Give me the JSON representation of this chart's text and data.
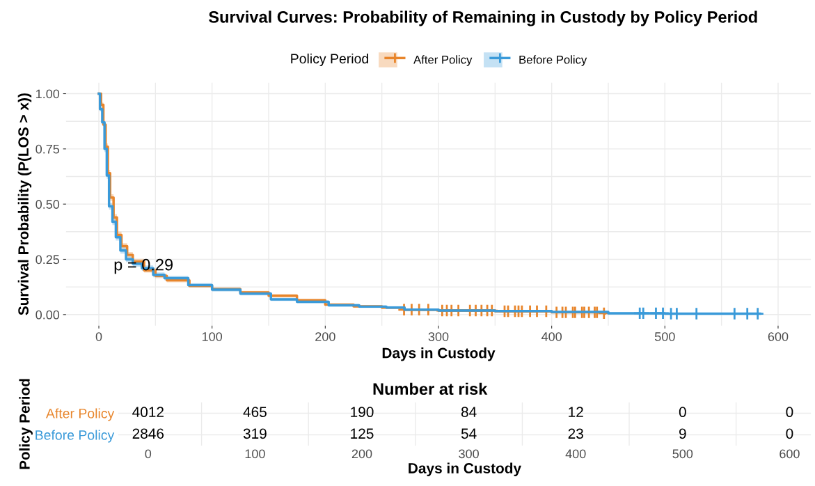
{
  "chart_data": [
    {
      "type": "step",
      "title": "Survival Curves: Probability of Remaining in Custody by Policy Period",
      "xlabel": "Days in Custody",
      "ylabel": "Survival Probability (P(LOS > x))",
      "legend_title": "Policy Period",
      "legend": "top",
      "grid": true,
      "line_style": "solid",
      "xlim": [
        -29,
        629
      ],
      "ylim": [
        -0.05,
        1.05
      ],
      "xticks": [
        0,
        100,
        200,
        300,
        400,
        500,
        600
      ],
      "yticks": [
        {
          "value": 0,
          "label": "0.00"
        },
        {
          "value": 0.25,
          "label": "0.25"
        },
        {
          "value": 0.5,
          "label": "0.50"
        },
        {
          "value": 0.75,
          "label": "0.75"
        },
        {
          "value": 1,
          "label": "1.00"
        }
      ],
      "annotations": [
        "p = 0.29"
      ],
      "series": [
        {
          "name": "After Policy",
          "type": "step",
          "color": "#e8852b",
          "x": [
            0,
            2,
            4,
            6,
            8,
            10,
            13,
            16,
            20,
            25,
            30,
            40,
            50,
            60,
            80,
            100,
            125,
            150,
            175,
            200,
            225,
            250,
            270,
            300,
            350,
            400,
            447
          ],
          "values": [
            1.0,
            0.95,
            0.86,
            0.76,
            0.64,
            0.53,
            0.44,
            0.36,
            0.31,
            0.27,
            0.24,
            0.2,
            0.175,
            0.155,
            0.13,
            0.115,
            0.1,
            0.085,
            0.065,
            0.045,
            0.037,
            0.032,
            0.022,
            0.018,
            0.015,
            0.01,
            0.006
          ],
          "lower": [
            1.0,
            0.94,
            0.85,
            0.745,
            0.625,
            0.515,
            0.425,
            0.345,
            0.297,
            0.257,
            0.228,
            0.19,
            0.165,
            0.146,
            0.122,
            0.107,
            0.093,
            0.078,
            0.059,
            0.04,
            0.032,
            0.027,
            0.018,
            0.014,
            0.011,
            0.006,
            0.002
          ],
          "upper": [
            1.0,
            0.96,
            0.87,
            0.775,
            0.655,
            0.545,
            0.455,
            0.375,
            0.323,
            0.283,
            0.252,
            0.21,
            0.185,
            0.164,
            0.138,
            0.123,
            0.107,
            0.092,
            0.071,
            0.05,
            0.042,
            0.037,
            0.026,
            0.022,
            0.019,
            0.014,
            0.01
          ]
        },
        {
          "name": "Before Policy",
          "type": "step",
          "color": "#3a9ad9",
          "x": [
            0,
            1,
            3,
            5,
            7,
            9,
            12,
            15,
            19,
            24,
            30,
            38,
            48,
            58,
            79,
            100,
            125,
            152,
            175,
            203,
            230,
            254,
            270,
            300,
            350,
            400,
            450,
            500,
            584
          ],
          "values": [
            1.0,
            0.93,
            0.87,
            0.75,
            0.63,
            0.49,
            0.42,
            0.35,
            0.29,
            0.25,
            0.23,
            0.21,
            0.18,
            0.165,
            0.133,
            0.113,
            0.095,
            0.069,
            0.058,
            0.042,
            0.036,
            0.032,
            0.022,
            0.018,
            0.016,
            0.012,
            0.006,
            0.004,
            0.004
          ],
          "lower": [
            1.0,
            0.92,
            0.86,
            0.735,
            0.615,
            0.475,
            0.405,
            0.335,
            0.276,
            0.237,
            0.217,
            0.198,
            0.169,
            0.155,
            0.124,
            0.104,
            0.087,
            0.062,
            0.051,
            0.036,
            0.03,
            0.026,
            0.017,
            0.013,
            0.011,
            0.007,
            0.002,
            0.0,
            0.0
          ],
          "upper": [
            1.0,
            0.94,
            0.88,
            0.765,
            0.645,
            0.505,
            0.435,
            0.365,
            0.304,
            0.263,
            0.243,
            0.222,
            0.191,
            0.175,
            0.142,
            0.122,
            0.103,
            0.076,
            0.065,
            0.048,
            0.042,
            0.038,
            0.027,
            0.023,
            0.021,
            0.017,
            0.01,
            0.008,
            0.008
          ]
        },
        {
          "type": "scatter",
          "color": "#e8852b",
          "x": [
            269.6,
            276.3,
            282.9,
            291,
            303.3,
            307.4,
            311.5,
            317.6,
            327.8,
            332.9,
            338,
            343.1,
            347.2,
            358.4,
            361.5,
            367.6,
            370.7,
            373.7,
            380.9,
            387,
            395.2,
            404.3,
            409.5,
            412.5,
            418.7,
            420.7,
            426.8,
            428.8,
            432.9,
            438,
            440,
            446.2
          ],
          "values": [
            0.022,
            0.022,
            0.022,
            0.022,
            0.018,
            0.018,
            0.018,
            0.018,
            0.018,
            0.018,
            0.018,
            0.018,
            0.018,
            0.015,
            0.015,
            0.015,
            0.015,
            0.015,
            0.015,
            0.015,
            0.015,
            0.01,
            0.01,
            0.01,
            0.01,
            0.01,
            0.01,
            0.01,
            0.01,
            0.01,
            0.01,
            0.006
          ]
        },
        {
          "type": "scatter",
          "color": "#3a9ad9",
          "x": [
            477.8,
            480.9,
            492.1,
            498.3,
            505.4,
            510.5,
            527.9,
            561.5,
            572.8,
            582
          ],
          "values": [
            0.006,
            0.006,
            0.006,
            0.006,
            0.004,
            0.004,
            0.004,
            0.004,
            0.004,
            0.004
          ]
        }
      ]
    },
    {
      "type": "heatmap",
      "title": "Number at risk",
      "xlabel": "Days in Custody",
      "ylabel": "Policy Period",
      "grid": true,
      "categories": [
        "0",
        "100",
        "200",
        "300",
        "400",
        "500",
        "600"
      ],
      "y_categories": [
        "After Policy",
        "Before Policy"
      ],
      "colors": [
        "#e8852b",
        "#3a9ad9"
      ],
      "cells": [
        [
          4012,
          465,
          190,
          84,
          12,
          0,
          0
        ],
        [
          2846,
          319,
          125,
          54,
          23,
          9,
          0
        ]
      ],
      "data_labels": true
    }
  ]
}
